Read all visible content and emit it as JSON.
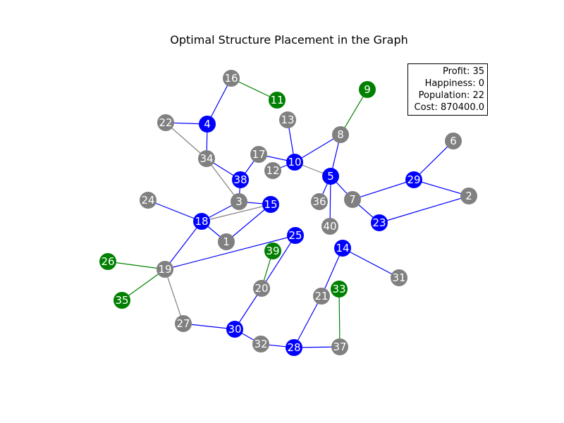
{
  "title": "Optimal Structure Placement in the Graph",
  "stats": {
    "profit": "Profit: 35",
    "happiness": "Happiness: 0",
    "population": "Population: 22",
    "cost": "Cost: 870400.0"
  },
  "colors": {
    "blue": "#0000ff",
    "green": "#008000",
    "gray": "#808080"
  },
  "nodes": [
    {
      "id": "1",
      "color": "gray"
    },
    {
      "id": "2",
      "color": "gray"
    },
    {
      "id": "3",
      "color": "gray"
    },
    {
      "id": "4",
      "color": "blue"
    },
    {
      "id": "5",
      "color": "blue"
    },
    {
      "id": "6",
      "color": "gray"
    },
    {
      "id": "7",
      "color": "gray"
    },
    {
      "id": "8",
      "color": "gray"
    },
    {
      "id": "9",
      "color": "green"
    },
    {
      "id": "10",
      "color": "blue"
    },
    {
      "id": "11",
      "color": "green"
    },
    {
      "id": "12",
      "color": "gray"
    },
    {
      "id": "13",
      "color": "gray"
    },
    {
      "id": "14",
      "color": "blue"
    },
    {
      "id": "15",
      "color": "blue"
    },
    {
      "id": "16",
      "color": "gray"
    },
    {
      "id": "17",
      "color": "gray"
    },
    {
      "id": "18",
      "color": "blue"
    },
    {
      "id": "19",
      "color": "gray"
    },
    {
      "id": "20",
      "color": "gray"
    },
    {
      "id": "21",
      "color": "gray"
    },
    {
      "id": "22",
      "color": "gray"
    },
    {
      "id": "23",
      "color": "blue"
    },
    {
      "id": "24",
      "color": "gray"
    },
    {
      "id": "25",
      "color": "blue"
    },
    {
      "id": "26",
      "color": "green"
    },
    {
      "id": "27",
      "color": "gray"
    },
    {
      "id": "28",
      "color": "blue"
    },
    {
      "id": "29",
      "color": "blue"
    },
    {
      "id": "30",
      "color": "blue"
    },
    {
      "id": "31",
      "color": "gray"
    },
    {
      "id": "32",
      "color": "gray"
    },
    {
      "id": "33",
      "color": "green"
    },
    {
      "id": "34",
      "color": "gray"
    },
    {
      "id": "35",
      "color": "green"
    },
    {
      "id": "36",
      "color": "gray"
    },
    {
      "id": "37",
      "color": "gray"
    },
    {
      "id": "38",
      "color": "blue"
    },
    {
      "id": "39",
      "color": "green"
    },
    {
      "id": "40",
      "color": "gray"
    }
  ],
  "edges": [
    {
      "from": "16",
      "to": "11",
      "color": "green"
    },
    {
      "from": "16",
      "to": "4",
      "color": "blue"
    },
    {
      "from": "4",
      "to": "22",
      "color": "blue"
    },
    {
      "from": "4",
      "to": "34",
      "color": "blue"
    },
    {
      "from": "22",
      "to": "34",
      "color": "gray"
    },
    {
      "from": "34",
      "to": "38",
      "color": "blue"
    },
    {
      "from": "34",
      "to": "3",
      "color": "gray"
    },
    {
      "from": "38",
      "to": "17",
      "color": "blue"
    },
    {
      "from": "38",
      "to": "3",
      "color": "blue"
    },
    {
      "from": "3",
      "to": "15",
      "color": "blue"
    },
    {
      "from": "18",
      "to": "3",
      "color": "blue"
    },
    {
      "from": "18",
      "to": "15",
      "color": "gray"
    },
    {
      "from": "18",
      "to": "24",
      "color": "blue"
    },
    {
      "from": "18",
      "to": "1",
      "color": "blue"
    },
    {
      "from": "1",
      "to": "15",
      "color": "blue"
    },
    {
      "from": "18",
      "to": "19",
      "color": "blue"
    },
    {
      "from": "19",
      "to": "26",
      "color": "green"
    },
    {
      "from": "19",
      "to": "35",
      "color": "green"
    },
    {
      "from": "19",
      "to": "27",
      "color": "gray"
    },
    {
      "from": "19",
      "to": "25",
      "color": "blue"
    },
    {
      "from": "27",
      "to": "30",
      "color": "blue"
    },
    {
      "from": "30",
      "to": "20",
      "color": "blue"
    },
    {
      "from": "20",
      "to": "25",
      "color": "blue"
    },
    {
      "from": "20",
      "to": "39",
      "color": "green"
    },
    {
      "from": "30",
      "to": "32",
      "color": "blue"
    },
    {
      "from": "32",
      "to": "28",
      "color": "blue"
    },
    {
      "from": "28",
      "to": "37",
      "color": "blue"
    },
    {
      "from": "37",
      "to": "33",
      "color": "green"
    },
    {
      "from": "28",
      "to": "21",
      "color": "blue"
    },
    {
      "from": "21",
      "to": "14",
      "color": "blue"
    },
    {
      "from": "14",
      "to": "31",
      "color": "blue"
    },
    {
      "from": "17",
      "to": "10",
      "color": "blue"
    },
    {
      "from": "12",
      "to": "10",
      "color": "blue"
    },
    {
      "from": "13",
      "to": "10",
      "color": "blue"
    },
    {
      "from": "10",
      "to": "8",
      "color": "blue"
    },
    {
      "from": "10",
      "to": "5",
      "color": "gray"
    },
    {
      "from": "8",
      "to": "9",
      "color": "green"
    },
    {
      "from": "8",
      "to": "5",
      "color": "blue"
    },
    {
      "from": "5",
      "to": "36",
      "color": "blue"
    },
    {
      "from": "5",
      "to": "40",
      "color": "blue"
    },
    {
      "from": "5",
      "to": "7",
      "color": "blue"
    },
    {
      "from": "7",
      "to": "29",
      "color": "blue"
    },
    {
      "from": "7",
      "to": "23",
      "color": "blue"
    },
    {
      "from": "29",
      "to": "6",
      "color": "blue"
    },
    {
      "from": "29",
      "to": "2",
      "color": "blue"
    },
    {
      "from": "23",
      "to": "2",
      "color": "blue"
    }
  ]
}
